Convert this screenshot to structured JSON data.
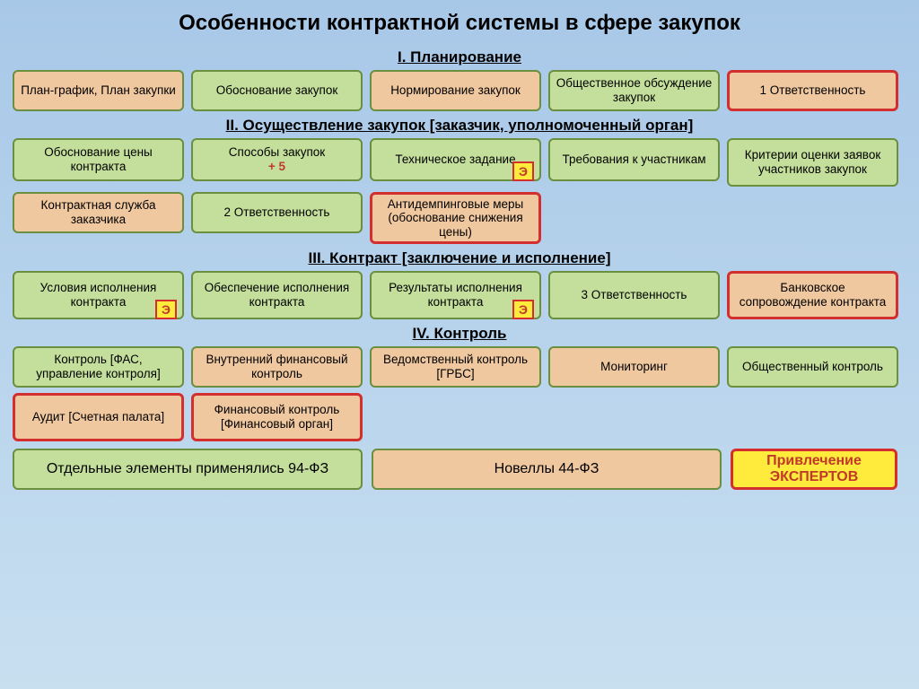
{
  "colors": {
    "bg_top": "#a8c8e8",
    "bg_bottom": "#c8dff0",
    "green_fill": "#c4df9b",
    "green_border": "#6a8f3f",
    "orange_fill": "#f0c8a0",
    "red_border": "#d32f2f",
    "yellow_badge": "#ffeb3b",
    "red_text": "#c0392b"
  },
  "title": "Особенности контрактной системы в сфере закупок",
  "sections": {
    "s1": {
      "header": "I. Планирование"
    },
    "s2": {
      "header": "II. Осуществление закупок [заказчик, уполномоченный орган]"
    },
    "s3": {
      "header": "III. Контракт [заключение и исполнение]"
    },
    "s4": {
      "header": "IV. Контроль"
    }
  },
  "row1": [
    {
      "text": "План-график, План закупки",
      "style": "green-border"
    },
    {
      "text": "Обоснование закупок",
      "style": "green-fill"
    },
    {
      "text": "Нормирование закупок",
      "style": "green-border"
    },
    {
      "text": "Общественное обсуждение закупок",
      "style": "green-fill"
    },
    {
      "text": "1 Ответственность",
      "style": "red-border-orange"
    }
  ],
  "row2": [
    {
      "text": "Обоснование цены контракта",
      "style": "green-fill"
    },
    {
      "text": "Способы закупок",
      "sub": "+ 5",
      "style": "green-fill",
      "subred": true
    },
    {
      "text": "Техническое задание",
      "style": "green-fill",
      "badge": "Э"
    },
    {
      "text": "Требования к участникам",
      "style": "green-fill"
    },
    {
      "text": "Критерии оценки заявок участников закупок",
      "style": "green-fill"
    }
  ],
  "row2b": [
    {
      "text": "Контрактная служба заказчика",
      "style": "green-border"
    },
    {
      "text": "2 Ответственность",
      "style": "green-fill"
    },
    {
      "text": "Антидемпинговые меры (обоснование снижения цены)",
      "style": "red-border-orange"
    }
  ],
  "row3": [
    {
      "text": "Условия исполнения контракта",
      "style": "green-fill",
      "badge": "Э"
    },
    {
      "text": "Обеспечение исполнения контракта",
      "style": "green-fill"
    },
    {
      "text": "Результаты исполнения контракта",
      "style": "green-fill",
      "badge": "Э"
    },
    {
      "text": "3 Ответственность",
      "style": "green-fill"
    },
    {
      "text": "Банковское сопровождение контракта",
      "style": "red-border-orange"
    }
  ],
  "row4": [
    {
      "text": "Контроль  [ФАС, управление контроля]",
      "style": "green-fill"
    },
    {
      "text": "Внутренний финансовый контроль",
      "style": "green-border"
    },
    {
      "text": "Ведомственный контроль  [ГРБС]",
      "style": "green-border"
    },
    {
      "text": "Мониторинг",
      "style": "green-border"
    },
    {
      "text": "Общественный контроль",
      "style": "green-fill"
    }
  ],
  "row4b": [
    {
      "text": "Аудит [Счетная палата]",
      "style": "red-border-orange"
    },
    {
      "text": "Финансовый контроль [Финансовый орган]",
      "style": "red-border-orange"
    }
  ],
  "legend": {
    "a": "Отдельные элементы применялись 94-ФЗ",
    "b": "Новеллы 44-ФЗ",
    "c": "Привлечение ЭКСПЕРТОВ"
  },
  "badge_char": "Э"
}
